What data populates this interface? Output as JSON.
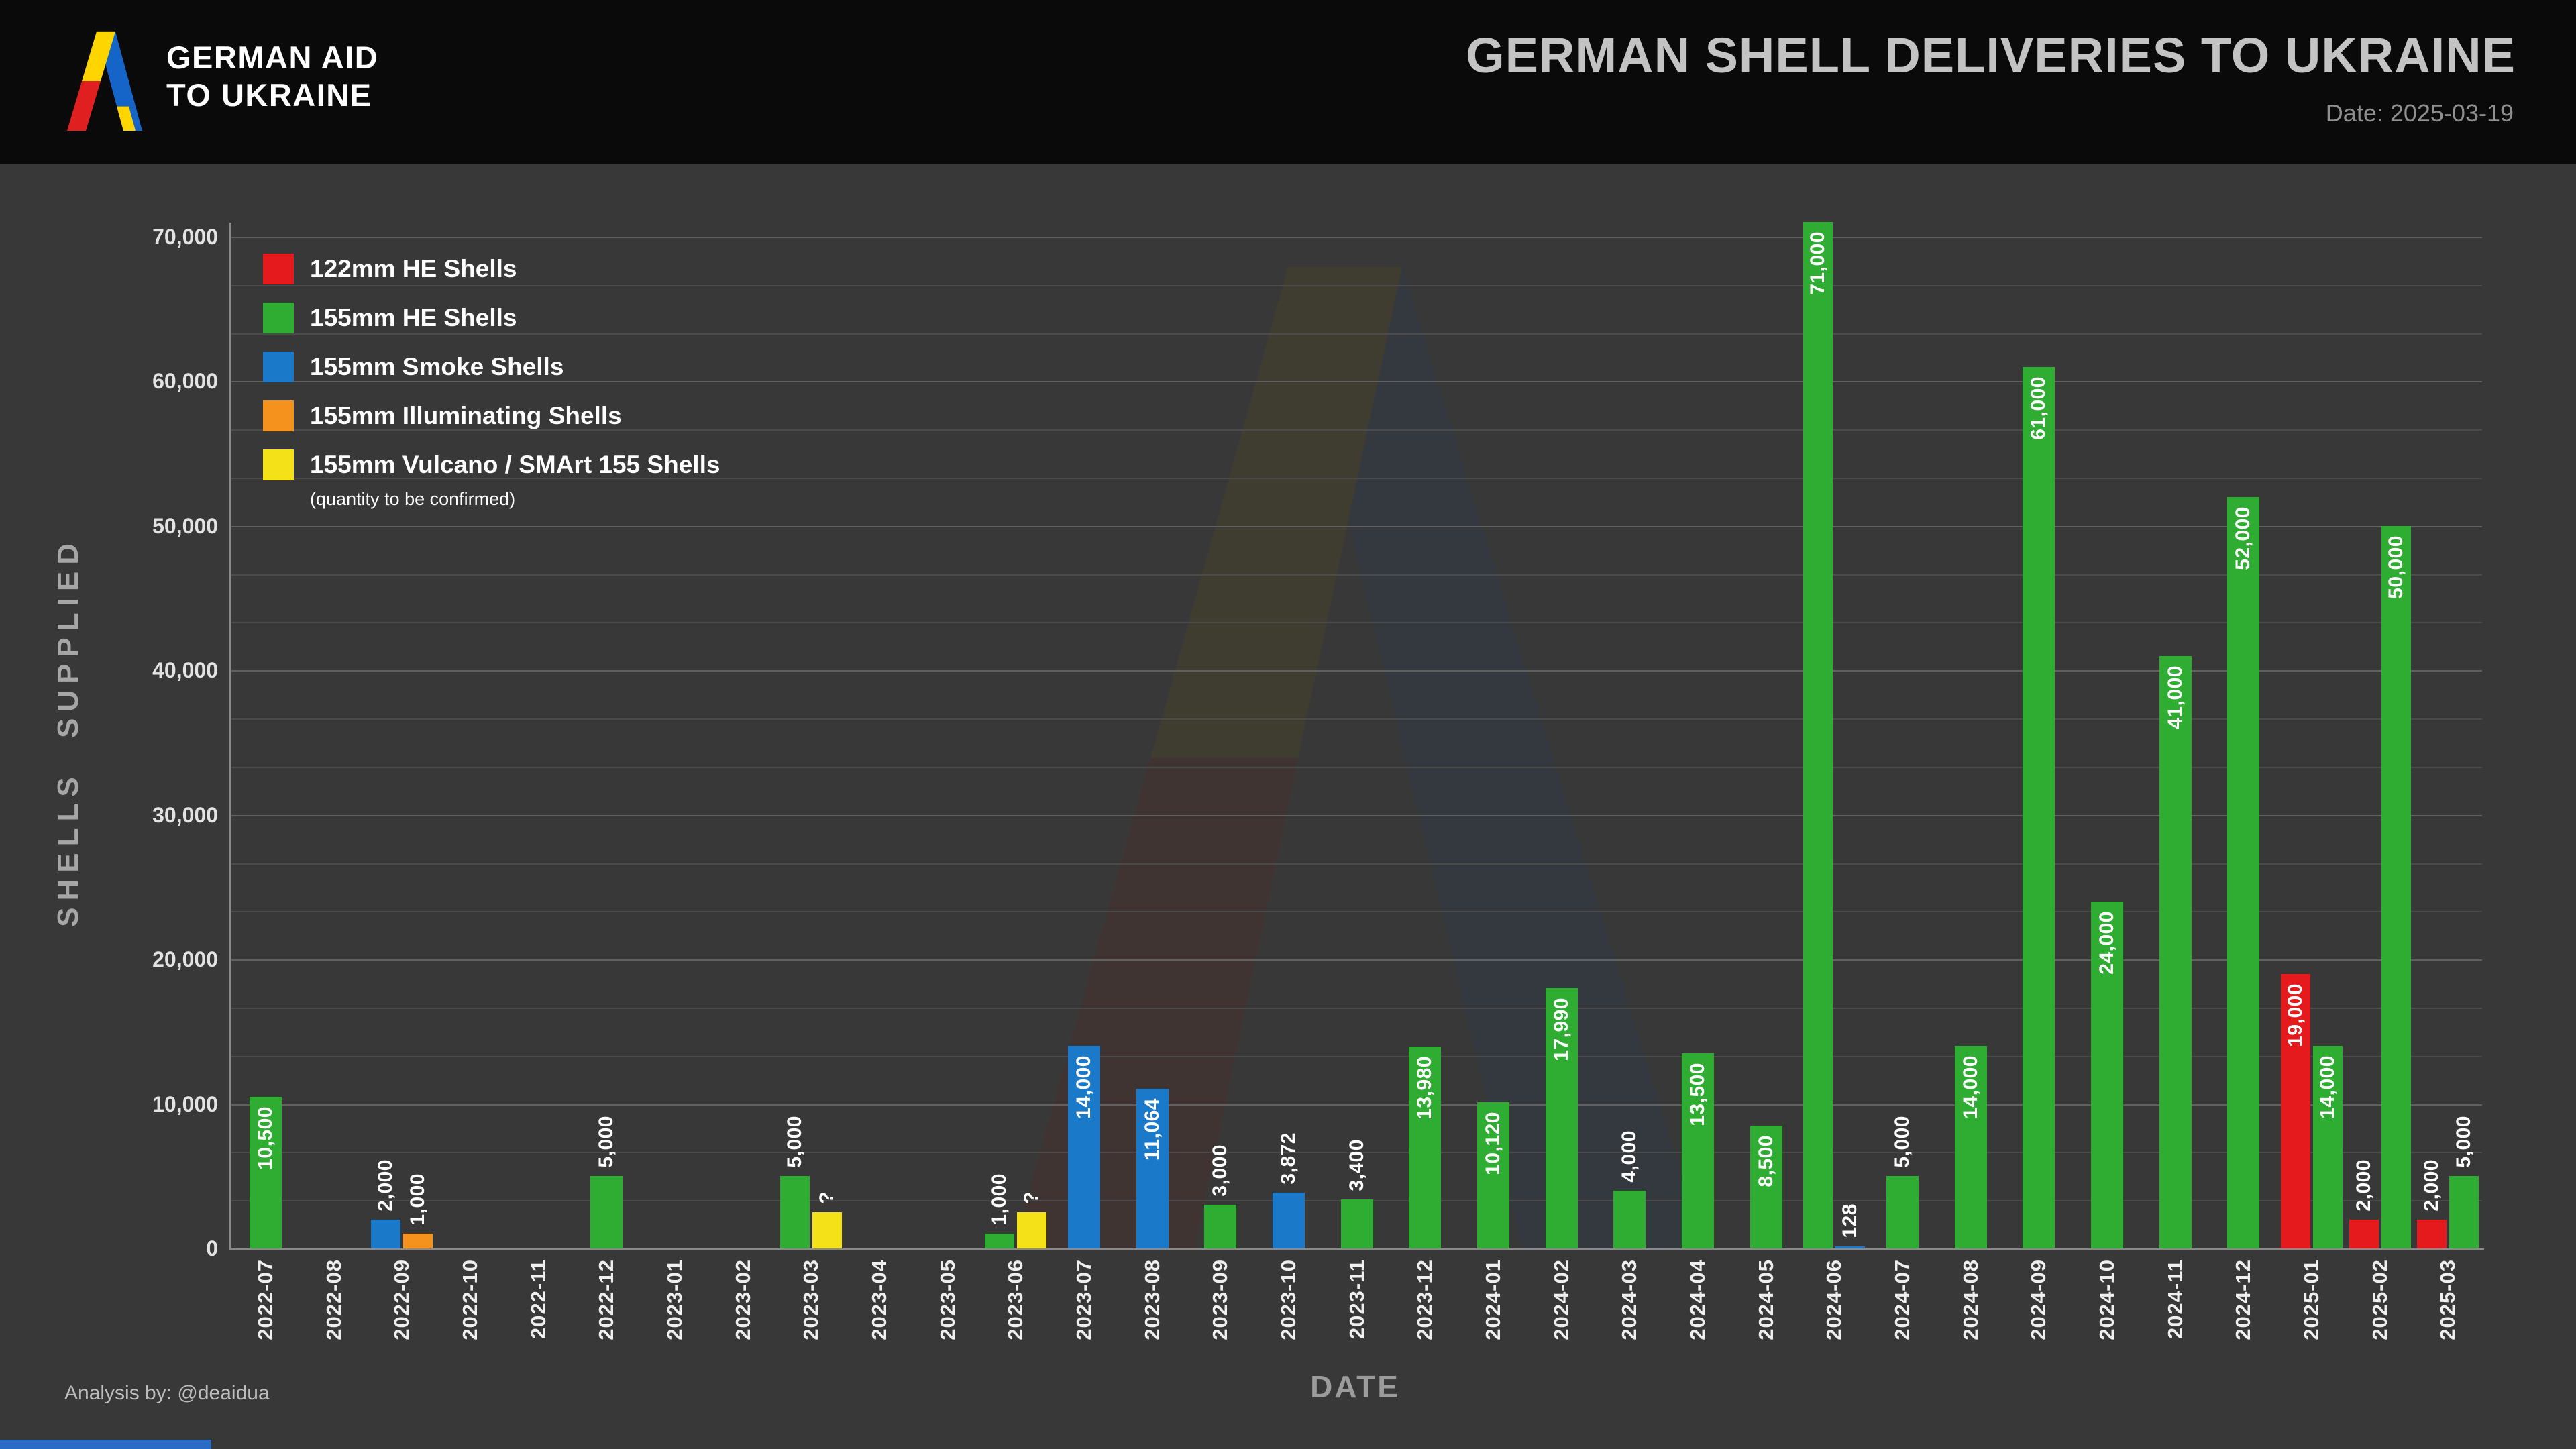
{
  "header": {
    "logo_line1": "GERMAN AID",
    "logo_line2": "TO UKRAINE",
    "title": "GERMAN SHELL DELIVERIES TO UKRAINE",
    "date_label": "Date: 2025-03-19"
  },
  "footer": {
    "credit": "Analysis by: @deaidua"
  },
  "chart_data": {
    "type": "bar",
    "title": "GERMAN SHELL DELIVERIES TO UKRAINE",
    "xlabel": "DATE",
    "ylabel": "SHELLS SUPPLIED",
    "ylim": [
      0,
      73000
    ],
    "grid": true,
    "legend_position": "upper left",
    "series_colors": {
      "122mm HE Shells": "#e41a1c",
      "155mm HE Shells": "#2fad33",
      "155mm Smoke Shells": "#1b79c9",
      "155mm Illuminating Shells": "#f5921d",
      "155mm Vulcano / SMArt 155 Shells": "#f4e118"
    },
    "legend": [
      {
        "label": "122mm HE Shells"
      },
      {
        "label": "155mm HE Shells"
      },
      {
        "label": "155mm Smoke Shells"
      },
      {
        "label": "155mm Illuminating Shells"
      },
      {
        "label": "155mm Vulcano / SMArt 155 Shells",
        "note": "(quantity to be confirmed)"
      }
    ],
    "yticks": [
      {
        "value": 0,
        "label": "0"
      },
      {
        "value": 10000,
        "label": "10,000"
      },
      {
        "value": 20000,
        "label": "20,000"
      },
      {
        "value": 30000,
        "label": "30,000"
      },
      {
        "value": 40000,
        "label": "40,000"
      },
      {
        "value": 50000,
        "label": "50,000"
      },
      {
        "value": 60000,
        "label": "60,000"
      },
      {
        "value": 70000,
        "label": "70,000"
      }
    ],
    "categories": [
      "2022-07",
      "2022-08",
      "2022-09",
      "2022-10",
      "2022-11",
      "2022-12",
      "2023-01",
      "2023-02",
      "2023-03",
      "2023-04",
      "2023-05",
      "2023-06",
      "2023-07",
      "2023-08",
      "2023-09",
      "2023-10",
      "2023-11",
      "2023-12",
      "2024-01",
      "2024-02",
      "2024-03",
      "2024-04",
      "2024-05",
      "2024-06",
      "2024-07",
      "2024-08",
      "2024-09",
      "2024-10",
      "2024-11",
      "2024-12",
      "2025-01",
      "2025-02",
      "2025-03"
    ],
    "bars": [
      {
        "month": "2022-07",
        "segments": [
          {
            "series": "155mm HE Shells",
            "value": 10500,
            "label": "10,500",
            "label_position": "inside"
          }
        ]
      },
      {
        "month": "2022-08",
        "segments": []
      },
      {
        "month": "2022-09",
        "segments": [
          {
            "series": "155mm Smoke Shells",
            "value": 2000,
            "label": "2,000",
            "label_position": "above"
          },
          {
            "series": "155mm Illuminating Shells",
            "value": 1000,
            "label": "1,000",
            "label_position": "above"
          }
        ]
      },
      {
        "month": "2022-10",
        "segments": []
      },
      {
        "month": "2022-11",
        "segments": []
      },
      {
        "month": "2022-12",
        "segments": [
          {
            "series": "155mm HE Shells",
            "value": 5000,
            "label": "5,000",
            "label_position": "above"
          }
        ]
      },
      {
        "month": "2023-01",
        "segments": []
      },
      {
        "month": "2023-02",
        "segments": []
      },
      {
        "month": "2023-03",
        "segments": [
          {
            "series": "155mm HE Shells",
            "value": 5000,
            "label": "5,000",
            "label_position": "above"
          },
          {
            "series": "155mm Vulcano / SMArt 155 Shells",
            "value": 2500,
            "label": "?",
            "label_position": "above",
            "value_estimated": true
          }
        ]
      },
      {
        "month": "2023-04",
        "segments": []
      },
      {
        "month": "2023-05",
        "segments": []
      },
      {
        "month": "2023-06",
        "segments": [
          {
            "series": "155mm HE Shells",
            "value": 1000,
            "label": "1,000",
            "label_position": "above"
          },
          {
            "series": "155mm Vulcano / SMArt 155 Shells",
            "value": 2500,
            "label": "?",
            "label_position": "above",
            "value_estimated": true
          }
        ]
      },
      {
        "month": "2023-07",
        "segments": [
          {
            "series": "155mm Smoke Shells",
            "value": 14000,
            "label": "14,000",
            "label_position": "inside"
          }
        ]
      },
      {
        "month": "2023-08",
        "segments": [
          {
            "series": "155mm Smoke Shells",
            "value": 11064,
            "label": "11,064",
            "label_position": "inside"
          }
        ]
      },
      {
        "month": "2023-09",
        "segments": [
          {
            "series": "155mm HE Shells",
            "value": 3000,
            "label": "3,000",
            "label_position": "above"
          }
        ]
      },
      {
        "month": "2023-10",
        "segments": [
          {
            "series": "155mm Smoke Shells",
            "value": 3872,
            "label": "3,872",
            "label_position": "above"
          }
        ]
      },
      {
        "month": "2023-11",
        "segments": [
          {
            "series": "155mm HE Shells",
            "value": 3400,
            "label": "3,400",
            "label_position": "above"
          }
        ]
      },
      {
        "month": "2023-12",
        "segments": [
          {
            "series": "155mm HE Shells",
            "value": 13980,
            "label": "13,980",
            "label_position": "inside"
          }
        ]
      },
      {
        "month": "2024-01",
        "segments": [
          {
            "series": "155mm HE Shells",
            "value": 10120,
            "label": "10,120",
            "label_position": "inside"
          }
        ]
      },
      {
        "month": "2024-02",
        "segments": [
          {
            "series": "155mm HE Shells",
            "value": 17990,
            "label": "17,990",
            "label_position": "inside"
          }
        ]
      },
      {
        "month": "2024-03",
        "segments": [
          {
            "series": "155mm HE Shells",
            "value": 4000,
            "label": "4,000",
            "label_position": "above"
          }
        ]
      },
      {
        "month": "2024-04",
        "segments": [
          {
            "series": "155mm HE Shells",
            "value": 13500,
            "label": "13,500",
            "label_position": "inside"
          }
        ]
      },
      {
        "month": "2024-05",
        "segments": [
          {
            "series": "155mm HE Shells",
            "value": 8500,
            "label": "8,500",
            "label_position": "inside"
          }
        ]
      },
      {
        "month": "2024-06",
        "segments": [
          {
            "series": "155mm HE Shells",
            "value": 71000,
            "label": "71,000",
            "label_position": "inside"
          },
          {
            "series": "155mm Smoke Shells",
            "value": 128,
            "label": "128",
            "label_position": "above"
          }
        ]
      },
      {
        "month": "2024-07",
        "segments": [
          {
            "series": "155mm HE Shells",
            "value": 5000,
            "label": "5,000",
            "label_position": "above"
          }
        ]
      },
      {
        "month": "2024-08",
        "segments": [
          {
            "series": "155mm HE Shells",
            "value": 14000,
            "label": "14,000",
            "label_position": "inside"
          }
        ]
      },
      {
        "month": "2024-09",
        "segments": [
          {
            "series": "155mm HE Shells",
            "value": 61000,
            "label": "61,000",
            "label_position": "inside"
          }
        ]
      },
      {
        "month": "2024-10",
        "segments": [
          {
            "series": "155mm HE Shells",
            "value": 24000,
            "label": "24,000",
            "label_position": "inside"
          }
        ]
      },
      {
        "month": "2024-11",
        "segments": [
          {
            "series": "155mm HE Shells",
            "value": 41000,
            "label": "41,000",
            "label_position": "inside"
          }
        ]
      },
      {
        "month": "2024-12",
        "segments": [
          {
            "series": "155mm HE Shells",
            "value": 52000,
            "label": "52,000",
            "label_position": "inside"
          }
        ]
      },
      {
        "month": "2025-01",
        "segments": [
          {
            "series": "122mm HE Shells",
            "value": 19000,
            "label": "19,000",
            "label_position": "inside"
          },
          {
            "series": "155mm HE Shells",
            "value": 14000,
            "label": "14,000",
            "label_position": "inside"
          }
        ]
      },
      {
        "month": "2025-02",
        "segments": [
          {
            "series": "122mm HE Shells",
            "value": 2000,
            "label": "2,000",
            "label_position": "above"
          },
          {
            "series": "155mm HE Shells",
            "value": 50000,
            "label": "50,000",
            "label_position": "inside"
          }
        ]
      },
      {
        "month": "2025-03",
        "segments": [
          {
            "series": "122mm HE Shells",
            "value": 2000,
            "label": "2,000",
            "label_position": "above"
          },
          {
            "series": "155mm HE Shells",
            "value": 5000,
            "label": "5,000",
            "label_position": "above"
          }
        ]
      }
    ]
  }
}
